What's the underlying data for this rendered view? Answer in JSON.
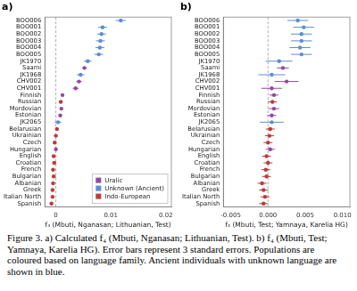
{
  "caption": "Figure 3. a) Calculated f₄ (Mbuti, Nganasan; Lithuanian, Test). b) f₄ (Mbuti, Test; Yamnaya, Karelia HG). Error bars represent 3 standard errors. Populations are coloured based on language family. Ancient individuals with unknown language are shown in blue.",
  "chart_data": [
    {
      "type": "scatter",
      "title": "a)",
      "x_label": "f₄ (Mbuti, Nganasan; Lithuanian, Test)",
      "categories": [
        "BOO006",
        "BOO001",
        "BOO002",
        "BOO003",
        "BOO004",
        "BOO005",
        "JK1970",
        "Saami",
        "JK1968",
        "CHV002",
        "CHV001",
        "Finnish",
        "Russian",
        "Mordovian",
        "Estonian",
        "JK2065",
        "Belarusian",
        "Ukrainian",
        "Czech",
        "Hungarian",
        "English",
        "Croatian",
        "French",
        "Bulgarian",
        "Albanian",
        "Greek",
        "Italian North",
        "Spanish"
      ],
      "series": [
        {
          "name": "Uralic",
          "color": "#944a9c",
          "values": [
            null,
            null,
            null,
            null,
            null,
            null,
            null,
            0.0052,
            null,
            0.0042,
            0.0036,
            0.0012,
            null,
            0.001,
            0.0008,
            null,
            null,
            null,
            null,
            0,
            null,
            null,
            null,
            null,
            null,
            null,
            null,
            null
          ],
          "errors": [
            null,
            null,
            null,
            null,
            null,
            null,
            null,
            0.0004,
            null,
            0.0005,
            0.0005,
            0.0003,
            null,
            0.0003,
            0.0003,
            null,
            null,
            null,
            null,
            0.0003,
            null,
            null,
            null,
            null,
            null,
            null,
            null,
            null
          ]
        },
        {
          "name": "Unknown (Ancient)",
          "color": "#5b8ed6",
          "values": [
            0.0118,
            0.0085,
            0.0083,
            0.0081,
            0.008,
            0.0078,
            0.0058,
            null,
            0.0045,
            null,
            null,
            null,
            null,
            null,
            null,
            0.0004,
            null,
            null,
            null,
            null,
            null,
            null,
            null,
            null,
            null,
            null,
            null,
            null
          ],
          "errors": [
            0.0009,
            0.0008,
            0.0008,
            0.0008,
            0.0008,
            0.0008,
            0.0007,
            null,
            0.0007,
            null,
            null,
            null,
            null,
            null,
            null,
            0.0006,
            null,
            null,
            null,
            null,
            null,
            null,
            null,
            null,
            null,
            null,
            null,
            null
          ]
        },
        {
          "name": "Indo-European",
          "color": "#c0393b",
          "values": [
            null,
            null,
            null,
            null,
            null,
            null,
            null,
            null,
            null,
            null,
            null,
            null,
            0.0009,
            null,
            null,
            null,
            0.0002,
            0,
            -0.0002,
            null,
            -0.0004,
            -0.0003,
            -0.0005,
            -0.0004,
            -0.0005,
            -0.0006,
            -0.0006,
            -0.0008
          ],
          "errors": [
            null,
            null,
            null,
            null,
            null,
            null,
            null,
            null,
            null,
            null,
            null,
            null,
            0.0003,
            null,
            null,
            null,
            0.0003,
            0.0003,
            0.0003,
            null,
            0.0003,
            0.0003,
            0.0003,
            0.0003,
            0.0003,
            0.0003,
            0.0003,
            0.0003
          ]
        }
      ],
      "reference_x": 0,
      "xlim": [
        -0.002,
        0.021
      ],
      "xticks": [
        0,
        0.01,
        0.02
      ],
      "grid": false,
      "legend": "bottom right"
    },
    {
      "type": "scatter",
      "title": "b)",
      "x_label": "f₄ (Mbuti, Test; Yamnaya, Karelia HG)",
      "categories": [
        "BOO006",
        "BOO001",
        "BOO002",
        "BOO003",
        "BOO004",
        "BOO005",
        "JK1970",
        "Saami",
        "JK1968",
        "CHV002",
        "CHV001",
        "Finnish",
        "Russian",
        "Mordovian",
        "Estonian",
        "JK2065",
        "Belarusian",
        "Ukrainian",
        "Czech",
        "Hungarian",
        "English",
        "Croatian",
        "French",
        "Bulgarian",
        "Albanian",
        "Greek",
        "Italian North",
        "Spanish"
      ],
      "values": [
        0.004,
        0.0048,
        0.0045,
        0.0045,
        0.0043,
        0.0045,
        0.0015,
        0.002,
        0.0005,
        0.0025,
        0.0005,
        0.0008,
        0.0006,
        0.0008,
        0.0005,
        0.0005,
        0.0003,
        0.0002,
        0,
        0.0003,
        -0.0002,
        0,
        -0.0003,
        -0.0002,
        -0.0008,
        -0.0006,
        -0.0004,
        -0.0006
      ],
      "errors": [
        0.0014,
        0.0014,
        0.0014,
        0.0014,
        0.0014,
        0.0014,
        0.0018,
        0.0008,
        0.0018,
        0.0016,
        0.0014,
        0.0006,
        0.0006,
        0.0007,
        0.0006,
        0.0016,
        0.0006,
        0.0006,
        0.0006,
        0.0006,
        0.0006,
        0.0006,
        0.0006,
        0.0006,
        0.0006,
        0.0006,
        0.0006,
        0.0006
      ],
      "colors": [
        "#5b8ed6",
        "#5b8ed6",
        "#5b8ed6",
        "#5b8ed6",
        "#5b8ed6",
        "#5b8ed6",
        "#5b8ed6",
        "#944a9c",
        "#5b8ed6",
        "#944a9c",
        "#944a9c",
        "#944a9c",
        "#c0393b",
        "#944a9c",
        "#944a9c",
        "#5b8ed6",
        "#c0393b",
        "#c0393b",
        "#c0393b",
        "#944a9c",
        "#c0393b",
        "#c0393b",
        "#c0393b",
        "#c0393b",
        "#c0393b",
        "#c0393b",
        "#c0393b",
        "#c0393b"
      ],
      "reference_x": 0,
      "xlim": [
        -0.006,
        0.011
      ],
      "xticks": [
        -0.005,
        {
          "value": 0,
          "label": "0.000"
        },
        0.005,
        {
          "value": 0.01,
          "label": "0.010"
        }
      ],
      "grid": false
    }
  ]
}
